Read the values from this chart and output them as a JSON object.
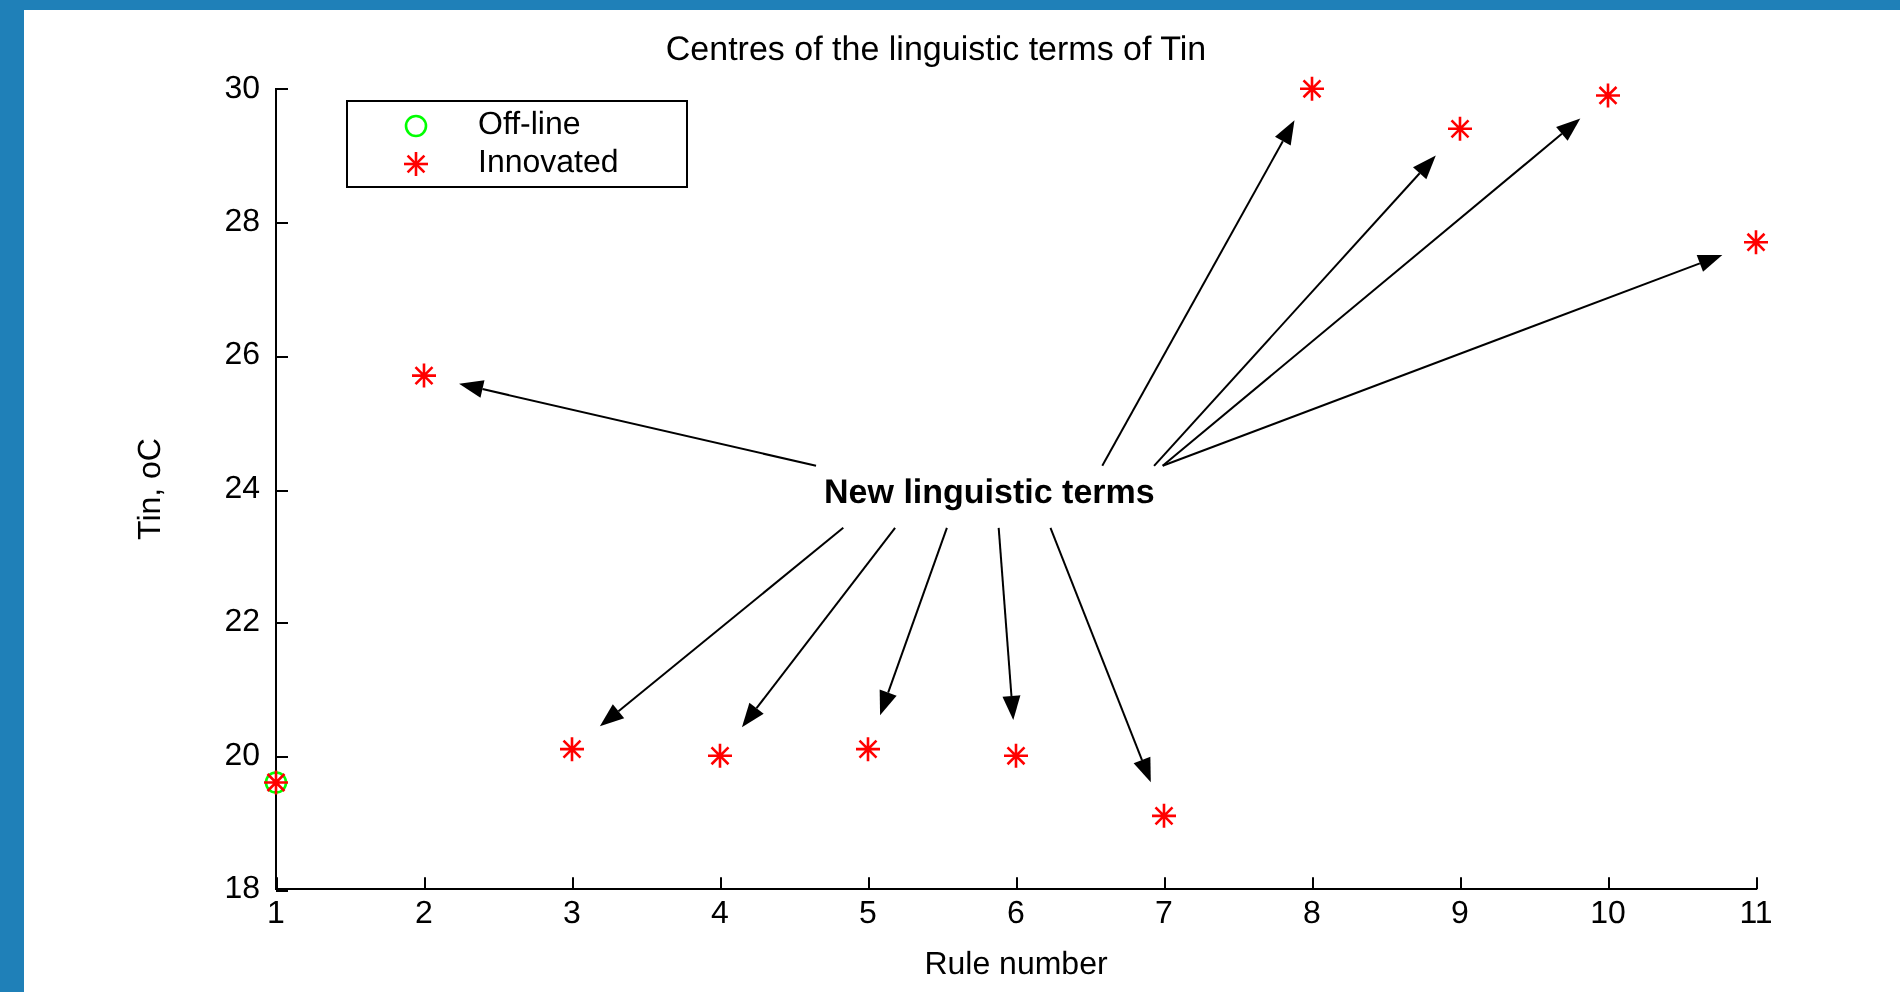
{
  "chart_data": {
    "type": "scatter",
    "title": "Centres of the linguistic terms of Tin",
    "xlabel": "Rule number",
    "ylabel": "Tin, oC",
    "series": [
      {
        "name": "Off-line",
        "color": "#00ff00",
        "marker": "circle",
        "x": [
          1
        ],
        "values": [
          19.6
        ]
      },
      {
        "name": "Innovated",
        "color": "#ff0000",
        "marker": "cross",
        "x": [
          1,
          2,
          3,
          4,
          5,
          6,
          7,
          8,
          9,
          10,
          11
        ],
        "values": [
          19.6,
          25.7,
          20.1,
          20.0,
          20.1,
          20.0,
          19.1,
          30.0,
          29.4,
          29.9,
          27.7
        ]
      }
    ],
    "xlim": [
      1,
      11
    ],
    "xticks": [
      1,
      2,
      3,
      4,
      5,
      6,
      7,
      8,
      9,
      10,
      11
    ],
    "ylim": [
      18,
      30
    ],
    "yticks": [
      18,
      20,
      22,
      24,
      26,
      28,
      30
    ],
    "legend": "top left",
    "annotations": [
      "New linguistic terms"
    ]
  }
}
